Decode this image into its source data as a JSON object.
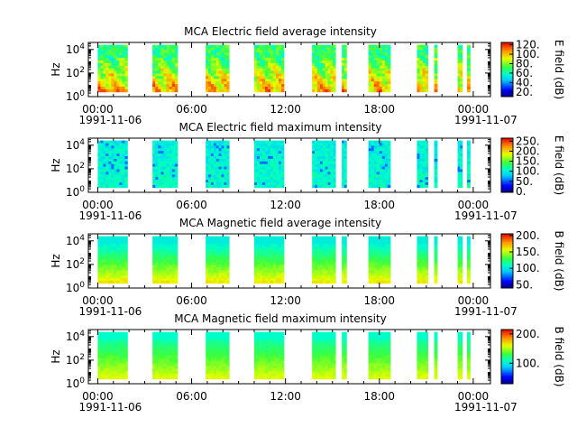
{
  "chart_data": [
    {
      "type": "heatmap",
      "title": "MCA  Electric field average intensity",
      "ylabel": "Hz",
      "colorbar_label": "E field (dB)",
      "colorbar_range": [
        10,
        125
      ],
      "colorbar_ticks": [
        "120.",
        "100.",
        "80.",
        "60.",
        "40.",
        "20."
      ],
      "colorbar_tick_values": [
        120,
        100,
        80,
        60,
        40,
        20
      ],
      "y_ticks": [
        {
          "base": "10",
          "exp": "0",
          "value": 1
        },
        {
          "base": "10",
          "exp": "2",
          "value": 100
        },
        {
          "base": "10",
          "exp": "4",
          "value": 10000
        }
      ],
      "x_ticks": [
        {
          "label": "00:00",
          "sublabel": "1991-11-06",
          "hours": 0
        },
        {
          "label": "06:00",
          "sublabel": "",
          "hours": 6
        },
        {
          "label": "12:00",
          "sublabel": "",
          "hours": 12
        },
        {
          "label": "18:00",
          "sublabel": "",
          "hours": 18
        },
        {
          "label": "00:00",
          "sublabel": "1991-11-07",
          "hours": 24
        }
      ],
      "x_range_hours": [
        -0.6,
        25.1
      ],
      "y_range_log10": [
        0,
        4.6
      ],
      "data_y_range_log10": [
        0.4,
        4.4
      ],
      "segments": [
        [
          0,
          1.9
        ],
        [
          3.5,
          5.1
        ],
        [
          6.9,
          8.4
        ],
        [
          10.0,
          11.9
        ],
        [
          13.7,
          15.2
        ],
        [
          15.6,
          15.9
        ],
        [
          17.3,
          18.7
        ],
        [
          20.4,
          21.1
        ],
        [
          21.5,
          21.7
        ],
        [
          23.0,
          23.3
        ],
        [
          23.6,
          23.8
        ]
      ],
      "style": "avg",
      "colormap": "rainbow"
    },
    {
      "type": "heatmap",
      "title": "MCA  Electric field maximum intensity",
      "ylabel": "Hz",
      "colorbar_label": "E field (dB)",
      "colorbar_range": [
        -5,
        265
      ],
      "colorbar_ticks": [
        "250.",
        "200.",
        "150.",
        "100.",
        "50.",
        "0."
      ],
      "colorbar_tick_values": [
        250,
        200,
        150,
        100,
        50,
        0
      ],
      "y_ticks": [
        {
          "base": "10",
          "exp": "0",
          "value": 1
        },
        {
          "base": "10",
          "exp": "2",
          "value": 100
        },
        {
          "base": "10",
          "exp": "4",
          "value": 10000
        }
      ],
      "x_ticks": [
        {
          "label": "00:00",
          "sublabel": "1991-11-06",
          "hours": 0
        },
        {
          "label": "06:00",
          "sublabel": "",
          "hours": 6
        },
        {
          "label": "12:00",
          "sublabel": "",
          "hours": 12
        },
        {
          "label": "18:00",
          "sublabel": "",
          "hours": 18
        },
        {
          "label": "00:00",
          "sublabel": "1991-11-07",
          "hours": 24
        }
      ],
      "x_range_hours": [
        -0.6,
        25.1
      ],
      "y_range_log10": [
        0,
        4.6
      ],
      "data_y_range_log10": [
        0.4,
        4.4
      ],
      "segments": [
        [
          0,
          1.9
        ],
        [
          3.5,
          5.1
        ],
        [
          6.9,
          8.4
        ],
        [
          10.0,
          11.9
        ],
        [
          13.7,
          15.2
        ],
        [
          15.6,
          15.9
        ],
        [
          17.3,
          18.7
        ],
        [
          20.4,
          21.1
        ],
        [
          21.5,
          21.7
        ],
        [
          23.0,
          23.3
        ],
        [
          23.6,
          23.8
        ]
      ],
      "style": "emax",
      "colormap": "rainbow"
    },
    {
      "type": "heatmap",
      "title": "MCA  Magnetic field average intensity",
      "ylabel": "Hz",
      "colorbar_label": "B field (dB)",
      "colorbar_range": [
        40,
        205
      ],
      "colorbar_ticks": [
        "200.",
        "150.",
        "100.",
        "50."
      ],
      "colorbar_tick_values": [
        200,
        150,
        100,
        50
      ],
      "y_ticks": [
        {
          "base": "10",
          "exp": "0",
          "value": 1
        },
        {
          "base": "10",
          "exp": "2",
          "value": 100
        },
        {
          "base": "10",
          "exp": "4",
          "value": 10000
        }
      ],
      "x_ticks": [
        {
          "label": "00:00",
          "sublabel": "1991-11-06",
          "hours": 0
        },
        {
          "label": "06:00",
          "sublabel": "",
          "hours": 6
        },
        {
          "label": "12:00",
          "sublabel": "",
          "hours": 12
        },
        {
          "label": "18:00",
          "sublabel": "",
          "hours": 18
        },
        {
          "label": "00:00",
          "sublabel": "1991-11-07",
          "hours": 24
        }
      ],
      "x_range_hours": [
        -0.6,
        25.1
      ],
      "y_range_log10": [
        0,
        4.6
      ],
      "data_y_range_log10": [
        0.4,
        4.4
      ],
      "segments": [
        [
          0,
          1.9
        ],
        [
          3.5,
          5.1
        ],
        [
          6.9,
          8.4
        ],
        [
          10.0,
          11.9
        ],
        [
          13.7,
          15.2
        ],
        [
          15.6,
          15.9
        ],
        [
          17.3,
          18.7
        ],
        [
          20.4,
          21.1
        ],
        [
          21.5,
          21.7
        ],
        [
          23.0,
          23.3
        ],
        [
          23.6,
          23.8
        ]
      ],
      "style": "bavg",
      "colormap": "rainbow"
    },
    {
      "type": "heatmap",
      "title": "MCA  Magnetic field maximum intensity",
      "ylabel": "Hz",
      "colorbar_label": "B field (dB)",
      "colorbar_range": [
        30,
        215
      ],
      "colorbar_ticks": [
        "200.",
        "100."
      ],
      "colorbar_tick_values": [
        200,
        100
      ],
      "y_ticks": [
        {
          "base": "10",
          "exp": "0",
          "value": 1
        },
        {
          "base": "10",
          "exp": "2",
          "value": 100
        },
        {
          "base": "10",
          "exp": "4",
          "value": 10000
        }
      ],
      "x_ticks": [
        {
          "label": "00:00",
          "sublabel": "1991-11-06",
          "hours": 0
        },
        {
          "label": "06:00",
          "sublabel": "",
          "hours": 6
        },
        {
          "label": "12:00",
          "sublabel": "",
          "hours": 12
        },
        {
          "label": "18:00",
          "sublabel": "",
          "hours": 18
        },
        {
          "label": "00:00",
          "sublabel": "1991-11-07",
          "hours": 24
        }
      ],
      "x_range_hours": [
        -0.6,
        25.1
      ],
      "y_range_log10": [
        0,
        4.6
      ],
      "data_y_range_log10": [
        0.4,
        4.4
      ],
      "segments": [
        [
          0,
          1.9
        ],
        [
          3.5,
          5.1
        ],
        [
          6.9,
          8.4
        ],
        [
          10.0,
          11.9
        ],
        [
          13.7,
          15.2
        ],
        [
          15.6,
          15.9
        ],
        [
          17.3,
          18.7
        ],
        [
          20.4,
          21.1
        ],
        [
          21.5,
          21.7
        ],
        [
          23.0,
          23.3
        ],
        [
          23.6,
          23.8
        ]
      ],
      "style": "bmax",
      "colormap": "rainbow"
    }
  ]
}
